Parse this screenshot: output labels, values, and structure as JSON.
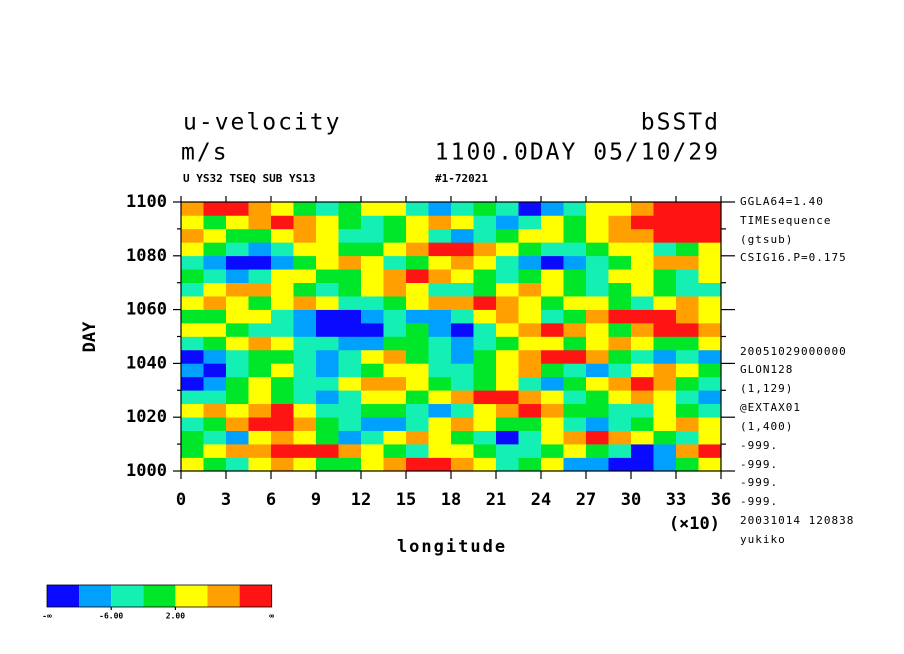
{
  "chart_data": {
    "type": "heatmap",
    "title": "u-velocity",
    "title_right": "bSSTd",
    "units": "m/s",
    "time_label": "1100.0DAY 05/10/29",
    "subtitle": "U YS32 TSEQ SUB YS13",
    "run_id": "#1-72021",
    "xlabel": "longitude",
    "x_scale_note": "(×10)",
    "ylabel": "DAY",
    "notes": [
      "GGLA64=1.40",
      "TIMEsequence",
      "(gtsub)",
      "CSIG16.P=0.175",
      "20051029000000",
      "GLON128",
      "(1,129)",
      "@EXTAX01",
      "(1,400)",
      "-999.",
      "-999.",
      "-999.",
      "-999.",
      "20031014 120838",
      "yukiko"
    ],
    "xlim": [
      0,
      36
    ],
    "xticks": [
      0,
      3,
      6,
      9,
      12,
      15,
      18,
      21,
      24,
      27,
      30,
      33,
      36
    ],
    "ylim": [
      1000,
      1100
    ],
    "yticks": [
      1000,
      1020,
      1040,
      1060,
      1080,
      1100
    ],
    "yminor": [
      1010,
      1030,
      1050,
      1070,
      1090
    ],
    "x": [
      0.75,
      2.25,
      3.75,
      5.25,
      6.75,
      8.25,
      9.75,
      11.25,
      12.75,
      14.25,
      15.75,
      17.25,
      18.75,
      20.25,
      21.75,
      23.25,
      24.75,
      26.25,
      27.75,
      29.25,
      30.75,
      32.25,
      33.75,
      35.25
    ],
    "y": [
      1002.5,
      1007.5,
      1012.5,
      1017.5,
      1022.5,
      1027.5,
      1032.5,
      1037.5,
      1042.5,
      1047.5,
      1052.5,
      1057.5,
      1062.5,
      1067.5,
      1072.5,
      1077.5,
      1082.5,
      1087.5,
      1092.5,
      1097.5
    ],
    "z": [
      [
        3,
        1,
        -3,
        5,
        8,
        4,
        0,
        -2,
        3,
        6,
        11,
        12,
        7,
        2,
        -4,
        1,
        3,
        -7,
        -9,
        -12,
        -11,
        -8,
        0,
        5
      ],
      [
        -2,
        4,
        8,
        9,
        12,
        11,
        10,
        6,
        3,
        -1,
        -4,
        2,
        5,
        1,
        -3,
        -6,
        0,
        4,
        1,
        -5,
        -12,
        -8,
        6,
        11
      ],
      [
        1,
        -5,
        -8,
        2,
        6,
        3,
        -2,
        -7,
        -4,
        3,
        7,
        2,
        -1,
        -6,
        -11,
        -5,
        2,
        8,
        11,
        7,
        3,
        0,
        -3,
        2
      ],
      [
        -4,
        -1,
        7,
        11,
        12,
        6,
        1,
        -3,
        -8,
        -10,
        -4,
        2,
        6,
        3,
        -2,
        1,
        5,
        -3,
        -7,
        -4,
        1,
        5,
        9,
        4
      ],
      [
        2,
        6,
        3,
        9,
        11,
        4,
        -3,
        -6,
        -2,
        1,
        -5,
        -9,
        -3,
        4,
        8,
        11,
        6,
        1,
        -2,
        -6,
        -3,
        2,
        -1,
        -5
      ],
      [
        -6,
        -3,
        1,
        4,
        -2,
        -6,
        -9,
        -4,
        2,
        5,
        -1,
        3,
        8,
        12,
        10,
        7,
        2,
        -4,
        -1,
        3,
        6,
        2,
        -3,
        -8
      ],
      [
        -11,
        -7,
        -2,
        3,
        -1,
        -5,
        -3,
        2,
        6,
        9,
        4,
        -2,
        -5,
        1,
        4,
        -3,
        -7,
        -2,
        4,
        8,
        11,
        7,
        1,
        -4
      ],
      [
        -8,
        -12,
        -6,
        -1,
        2,
        -3,
        -7,
        -4,
        1,
        5,
        2,
        -3,
        -6,
        -2,
        3,
        6,
        1,
        -4,
        -9,
        -3,
        5,
        9,
        4,
        -2
      ],
      [
        -12,
        -9,
        -4,
        1,
        -2,
        -5,
        -8,
        -3,
        2,
        6,
        -1,
        -4,
        -7,
        -2,
        4,
        7,
        10,
        12,
        6,
        1,
        -3,
        -7,
        -4,
        -9
      ],
      [
        -4,
        -1,
        3,
        6,
        2,
        -3,
        -6,
        -10,
        -7,
        -2,
        1,
        -3,
        -8,
        -5,
        1,
        5,
        3,
        -2,
        4,
        8,
        5,
        1,
        -2,
        2
      ],
      [
        2,
        5,
        1,
        -3,
        -6,
        -9,
        -12,
        -13,
        -11,
        -6,
        -2,
        -8,
        -11,
        -5,
        2,
        7,
        11,
        9,
        4,
        -1,
        6,
        10,
        12,
        8
      ],
      [
        -2,
        1,
        4,
        2,
        -5,
        -8,
        -11,
        -12,
        -9,
        -3,
        -7,
        -10,
        -4,
        3,
        6,
        2,
        -3,
        1,
        6,
        10,
        12,
        11,
        7,
        3
      ],
      [
        5,
        8,
        3,
        -2,
        2,
        6,
        3,
        -3,
        -6,
        -2,
        4,
        7,
        9,
        11,
        6,
        2,
        -1,
        3,
        5,
        1,
        -4,
        2,
        6,
        4
      ],
      [
        -3,
        2,
        6,
        9,
        5,
        1,
        -4,
        -2,
        3,
        6,
        2,
        -3,
        -6,
        -2,
        3,
        7,
        4,
        -1,
        -5,
        -2,
        3,
        -2,
        -6,
        -3
      ],
      [
        1,
        -4,
        -8,
        -3,
        2,
        5,
        1,
        -2,
        2,
        8,
        11,
        7,
        3,
        -1,
        -5,
        -2,
        4,
        1,
        -3,
        2,
        5,
        1,
        -3,
        2
      ],
      [
        -6,
        -9,
        -12,
        -11,
        -7,
        -2,
        3,
        6,
        2,
        -3,
        -1,
        4,
        7,
        2,
        -4,
        -9,
        -12,
        -10,
        -6,
        -2,
        3,
        7,
        9,
        5
      ],
      [
        4,
        1,
        -4,
        -7,
        -3,
        2,
        5,
        1,
        -2,
        3,
        7,
        11,
        12,
        8,
        3,
        -2,
        -6,
        -3,
        1,
        5,
        2,
        -3,
        -1,
        3
      ],
      [
        8,
        5,
        1,
        -2,
        3,
        6,
        2,
        -3,
        -6,
        -2,
        2,
        -3,
        -7,
        -4,
        1,
        5,
        3,
        -2,
        2,
        6,
        9,
        11,
        12,
        10
      ],
      [
        3,
        -2,
        4,
        8,
        11,
        7,
        2,
        -2,
        -5,
        -1,
        3,
        6,
        2,
        -4,
        -8,
        -3,
        2,
        -2,
        3,
        7,
        10,
        12,
        13,
        11
      ],
      [
        6,
        10,
        12,
        8,
        3,
        -1,
        -5,
        -2,
        4,
        2,
        -3,
        -7,
        -4,
        1,
        -6,
        -11,
        -9,
        -3,
        2,
        5,
        8,
        11,
        12,
        12
      ]
    ],
    "colorbar": {
      "levels": [
        -10,
        -6,
        -2,
        2,
        6,
        10
      ],
      "colors": [
        "#0a0aff",
        "#00a0ff",
        "#14f0b4",
        "#00e628",
        "#ffff00",
        "#ffa000",
        "#ff1414"
      ],
      "labels": [
        {
          "value": -6,
          "label": "-6.00"
        },
        {
          "value": 2,
          "label": "2.00"
        }
      ],
      "ends": [
        "-∞",
        "∞"
      ]
    }
  }
}
